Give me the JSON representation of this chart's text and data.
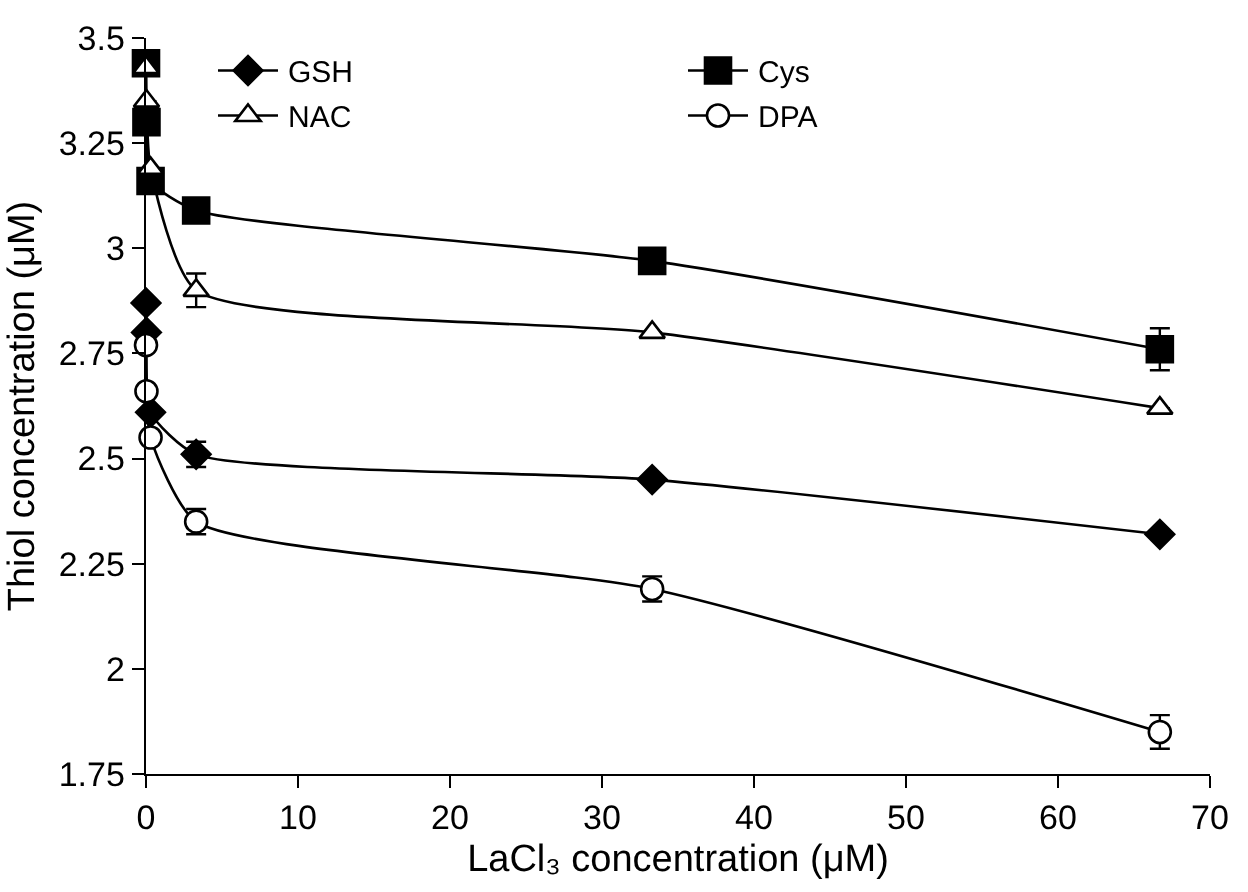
{
  "chart_data": {
    "type": "line",
    "xlabel": "LaCl₃ concentration (μM)",
    "ylabel": "Thiol concentration (μM)",
    "x": [
      0,
      0.03,
      0.3,
      3.3,
      33.3,
      66.7
    ],
    "xlim": [
      0,
      70
    ],
    "xticks": [
      0,
      10,
      20,
      30,
      40,
      50,
      60,
      70
    ],
    "ylim": [
      1.75,
      3.5
    ],
    "yticks": [
      1.75,
      2,
      2.25,
      2.5,
      2.75,
      3,
      3.25,
      3.5
    ],
    "legend": "top",
    "line_style": "solid",
    "series": [
      {
        "name": "GSH",
        "color": "#000000",
        "marker": "diamond",
        "colors": [
          "#000000",
          "#000000",
          "#000000",
          "#000000",
          "#000000",
          "#000000"
        ],
        "values": [
          2.87,
          2.8,
          2.61,
          2.51,
          2.45,
          2.32
        ],
        "errors": [
          null,
          null,
          null,
          0.03,
          null,
          null
        ]
      },
      {
        "name": "Cys",
        "color": "#000000",
        "marker": "square",
        "colors": [
          "#000000",
          "#000000",
          "#000000",
          "#000000",
          "#000000",
          "#000000"
        ],
        "values": [
          3.44,
          3.3,
          3.16,
          3.09,
          2.97,
          2.76
        ],
        "errors": [
          null,
          null,
          null,
          null,
          null,
          0.05
        ]
      },
      {
        "name": "NAC",
        "color": "#000000",
        "marker": "triangle",
        "colors": [
          "#ffffff",
          "#ffffff",
          "#ffffff",
          "#ffffff",
          "#ffffff",
          "#ffffff"
        ],
        "values": [
          3.43,
          3.35,
          3.19,
          2.9,
          2.8,
          2.62
        ],
        "errors": [
          null,
          null,
          null,
          0.04,
          null,
          null
        ]
      },
      {
        "name": "DPA",
        "color": "#000000",
        "marker": "circle",
        "colors": [
          "#ffffff",
          "#ffffff",
          "#ffffff",
          "#ffffff",
          "#ffffff",
          "#ffffff"
        ],
        "values": [
          2.77,
          2.66,
          2.55,
          2.35,
          2.19,
          1.85
        ],
        "errors": [
          null,
          null,
          null,
          0.03,
          0.03,
          0.04
        ]
      }
    ]
  }
}
